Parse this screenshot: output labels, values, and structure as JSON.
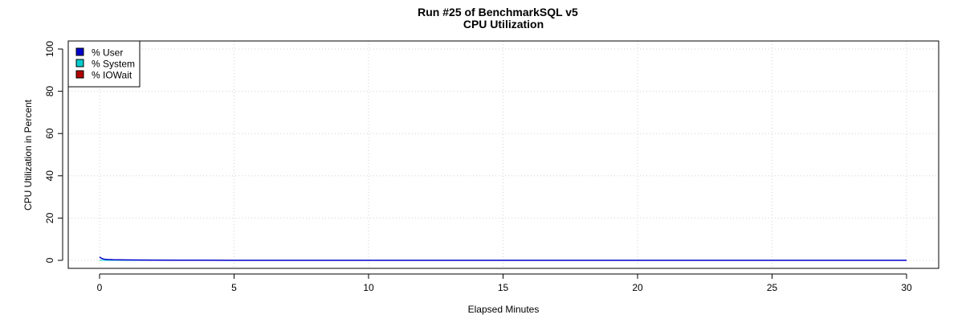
{
  "chart_data": {
    "type": "line",
    "title": "Run #25 of BenchmarkSQL v5",
    "subtitle": "CPU Utilization",
    "xlabel": "Elapsed Minutes",
    "ylabel": "CPU Utilization in Percent",
    "xlim": [
      0,
      30
    ],
    "ylim": [
      0,
      100
    ],
    "x_ticks": [
      "0",
      "5",
      "10",
      "15",
      "20",
      "25",
      "30"
    ],
    "y_ticks": [
      "0",
      "20",
      "40",
      "60",
      "80",
      "100"
    ],
    "grid": true,
    "legend_position": "top-left",
    "series": [
      {
        "name": "% User",
        "color": "#0000cc",
        "x": [
          0,
          0.05,
          0.1,
          0.15,
          0.2,
          0.3,
          0.5,
          0.75,
          1,
          1.5,
          2,
          3,
          5,
          10,
          15,
          20,
          25,
          30
        ],
        "y": [
          1.6,
          1.1,
          0.8,
          0.6,
          0.5,
          0.4,
          0.3,
          0.25,
          0.2,
          0.15,
          0.1,
          0.05,
          0.02,
          0.01,
          0.01,
          0.01,
          0.01,
          0.01
        ]
      },
      {
        "name": "% System",
        "color": "#00cccc",
        "x": [
          0,
          30
        ],
        "y": [
          0,
          0
        ]
      },
      {
        "name": "% IOWait",
        "color": "#b20000",
        "x": [
          0,
          30
        ],
        "y": [
          0,
          0
        ]
      }
    ]
  }
}
